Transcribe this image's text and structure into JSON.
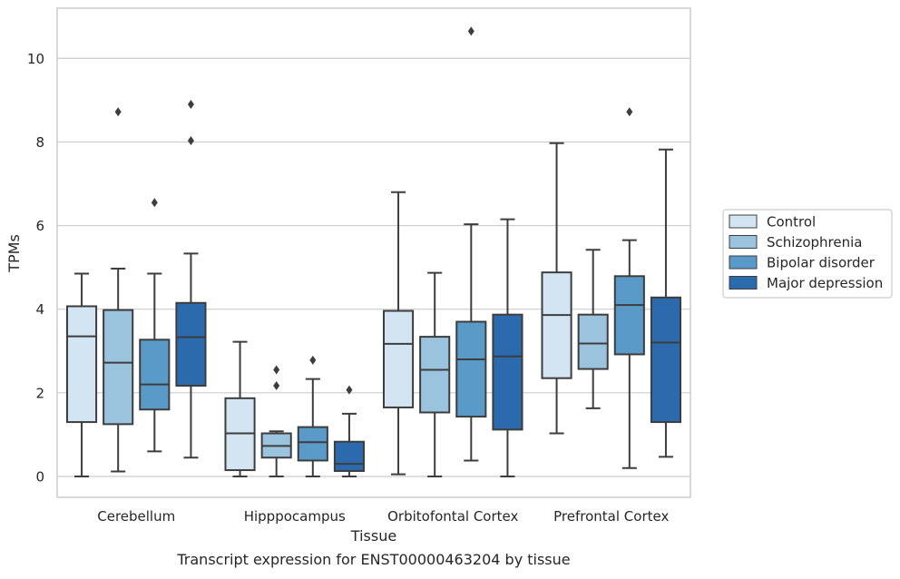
{
  "chart_data": {
    "type": "boxplot",
    "xlabel": "Tissue",
    "ylabel": "TPMs",
    "caption": "Transcript expression for ENST00000463204 by tissue",
    "categories": [
      "Cerebellum",
      "Hipppocampus",
      "Orbitofontal Cortex",
      "Prefrontal Cortex"
    ],
    "ylim": [
      -0.5,
      11.2
    ],
    "yticks": [
      0,
      2,
      4,
      6,
      8,
      10
    ],
    "grid": "horizontal",
    "legend_position": "right",
    "series": [
      {
        "name": "Control",
        "color": "#d3e4f3",
        "boxes": [
          {
            "whislo": 0.0,
            "q1": 1.3,
            "med": 3.35,
            "q3": 4.07,
            "whishi": 4.85,
            "fliers": []
          },
          {
            "whislo": 0.0,
            "q1": 0.15,
            "med": 1.03,
            "q3": 1.87,
            "whishi": 3.22,
            "fliers": []
          },
          {
            "whislo": 0.05,
            "q1": 1.65,
            "med": 3.17,
            "q3": 3.96,
            "whishi": 6.8,
            "fliers": []
          },
          {
            "whislo": 1.03,
            "q1": 2.35,
            "med": 3.86,
            "q3": 4.88,
            "whishi": 7.97,
            "fliers": []
          }
        ]
      },
      {
        "name": "Schizophrenia",
        "color": "#9ac4de",
        "boxes": [
          {
            "whislo": 0.12,
            "q1": 1.25,
            "med": 2.72,
            "q3": 3.98,
            "whishi": 4.97,
            "fliers": [
              8.72
            ]
          },
          {
            "whislo": 0.0,
            "q1": 0.45,
            "med": 0.73,
            "q3": 1.03,
            "whishi": 1.08,
            "fliers": [
              2.17,
              2.55
            ]
          },
          {
            "whislo": 0.0,
            "q1": 1.53,
            "med": 2.55,
            "q3": 3.34,
            "whishi": 4.87,
            "fliers": []
          },
          {
            "whislo": 1.63,
            "q1": 2.57,
            "med": 3.18,
            "q3": 3.87,
            "whishi": 5.42,
            "fliers": []
          }
        ]
      },
      {
        "name": "Bipolar disorder",
        "color": "#5a9ac9",
        "boxes": [
          {
            "whislo": 0.6,
            "q1": 1.6,
            "med": 2.2,
            "q3": 3.27,
            "whishi": 4.85,
            "fliers": [
              6.55
            ]
          },
          {
            "whislo": 0.0,
            "q1": 0.38,
            "med": 0.82,
            "q3": 1.18,
            "whishi": 2.33,
            "fliers": [
              2.78
            ]
          },
          {
            "whislo": 0.38,
            "q1": 1.43,
            "med": 2.8,
            "q3": 3.7,
            "whishi": 6.03,
            "fliers": [
              10.65
            ]
          },
          {
            "whislo": 0.2,
            "q1": 2.92,
            "med": 4.1,
            "q3": 4.79,
            "whishi": 5.65,
            "fliers": [
              8.72
            ]
          }
        ]
      },
      {
        "name": "Major depression",
        "color": "#2a6aad",
        "boxes": [
          {
            "whislo": 0.45,
            "q1": 2.17,
            "med": 3.33,
            "q3": 4.15,
            "whishi": 5.33,
            "fliers": [
              8.03,
              8.9
            ]
          },
          {
            "whislo": 0.0,
            "q1": 0.13,
            "med": 0.3,
            "q3": 0.83,
            "whishi": 1.5,
            "fliers": [
              2.07
            ]
          },
          {
            "whislo": 0.0,
            "q1": 1.12,
            "med": 2.87,
            "q3": 3.87,
            "whishi": 6.15,
            "fliers": []
          },
          {
            "whislo": 0.47,
            "q1": 1.3,
            "med": 3.2,
            "q3": 4.28,
            "whishi": 7.82,
            "fliers": []
          }
        ]
      }
    ]
  }
}
